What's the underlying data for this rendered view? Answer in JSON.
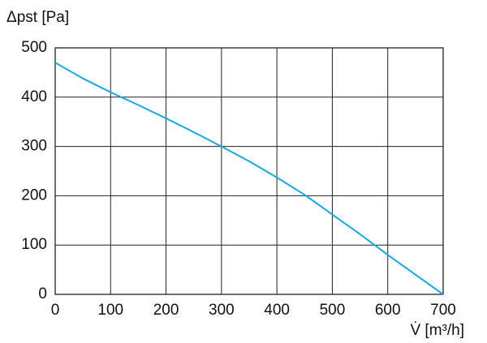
{
  "chart_data": {
    "type": "line",
    "y_label": "Δpst [Pa]",
    "x_label": "V̇ [m³/h]",
    "x": [
      0,
      50,
      100,
      150,
      200,
      250,
      300,
      350,
      400,
      450,
      500,
      550,
      600,
      650,
      700
    ],
    "series": [
      {
        "name": "Δpst",
        "color": "#1aa7e0",
        "values": [
          470,
          438,
          410,
          384,
          357,
          329,
          300,
          270,
          237,
          202,
          162,
          122,
          80,
          40,
          0
        ]
      }
    ],
    "xlim": [
      0,
      700
    ],
    "xticks": [
      0,
      100,
      200,
      300,
      400,
      500,
      600,
      700
    ],
    "ylim": [
      0,
      500
    ],
    "yticks": [
      0,
      100,
      200,
      300,
      400,
      500
    ],
    "grid": true
  }
}
